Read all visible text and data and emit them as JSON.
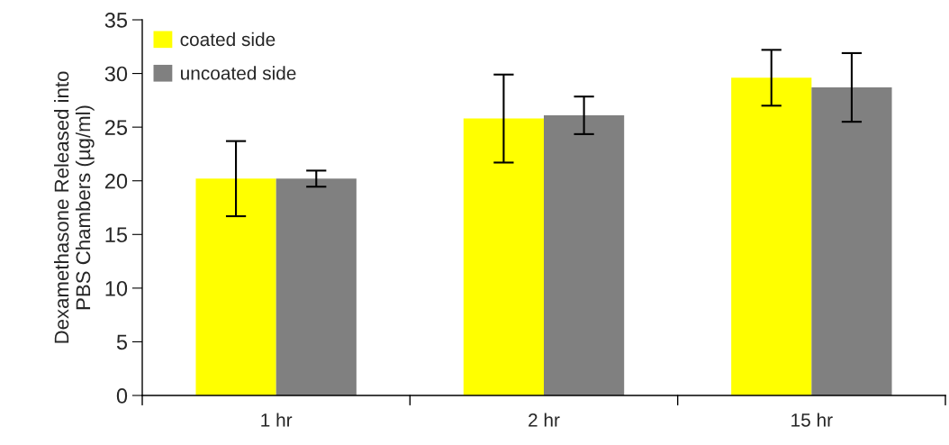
{
  "chart_data": {
    "type": "bar",
    "ylabel": "Dexamethasone Released into\nPBS Chambers (µg/ml)",
    "categories": [
      "1 hr",
      "2 hr",
      "15 hr"
    ],
    "series": [
      {
        "name": "coated side",
        "color": "#ffff00",
        "values": [
          20.2,
          25.8,
          29.6
        ],
        "errors": [
          3.5,
          4.1,
          2.6
        ]
      },
      {
        "name": "uncoated side",
        "color": "#808080",
        "values": [
          20.2,
          26.1,
          28.7
        ],
        "errors": [
          0.75,
          1.75,
          3.2
        ]
      }
    ],
    "ylim": [
      0,
      35
    ],
    "yticks": [
      0,
      5,
      10,
      15,
      20,
      25,
      30,
      35
    ],
    "grid": false,
    "legend": "top left"
  }
}
